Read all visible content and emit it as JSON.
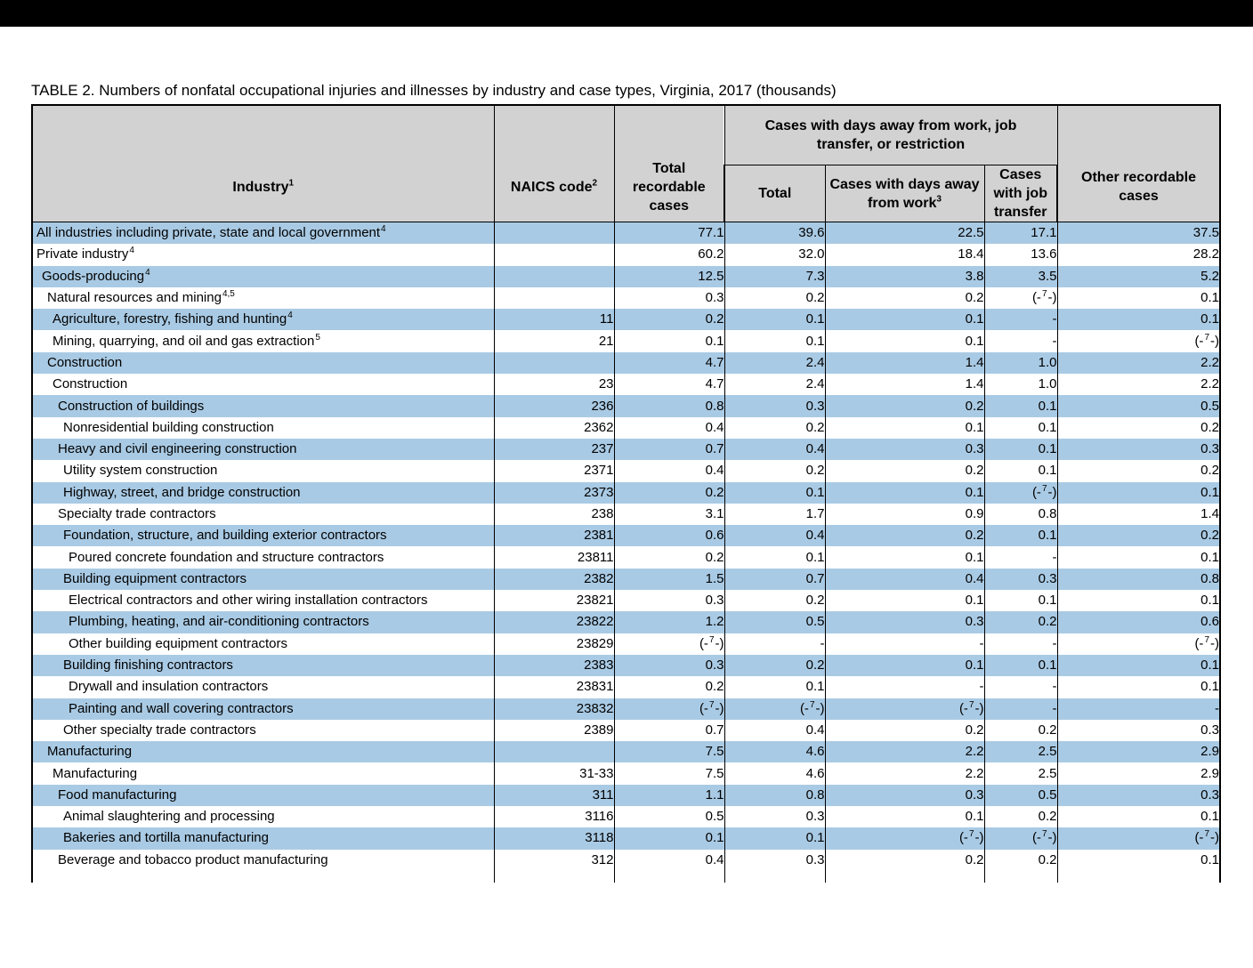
{
  "title": "TABLE 2. Numbers of nonfatal occupational injuries and illnesses by industry and case types, Virginia, 2017 (thousands)",
  "colors": {
    "band_blue": "#a9cae4",
    "header_gray": "#d2d2d2",
    "border_black": "#000000",
    "top_bar_black": "#000000"
  },
  "table": {
    "columns": {
      "industry": {
        "label": "Industry",
        "sup": "1"
      },
      "naics": {
        "label": "NAICS code",
        "sup": "2"
      },
      "total_recordable": {
        "label": "Total recordable cases"
      },
      "group": {
        "label": "Cases with days away from work, job transfer, or restriction"
      },
      "dart_total": {
        "label": "Total"
      },
      "days_away": {
        "label": "Cases with days away from work",
        "sup": "3"
      },
      "job_transfer": {
        "label": "Cases with job transfer"
      },
      "other_recordable": {
        "label": "Other recordable cases"
      }
    },
    "footnote_symbol": "(-7-)",
    "rows": [
      {
        "industry": "All industries including private, state and local government",
        "sup": "4",
        "indent": 0,
        "naics": "",
        "values": [
          "77.1",
          "39.6",
          "22.5",
          "17.1",
          "37.5"
        ]
      },
      {
        "industry": "Private industry",
        "sup": "4",
        "indent": 0,
        "naics": "",
        "values": [
          "60.2",
          "32.0",
          "18.4",
          "13.6",
          "28.2"
        ]
      },
      {
        "industry": "Goods-producing",
        "sup": "4",
        "indent": 1,
        "naics": "",
        "values": [
          "12.5",
          "7.3",
          "3.8",
          "3.5",
          "5.2"
        ]
      },
      {
        "industry": "Natural resources and mining",
        "sup": "4,5",
        "indent": 2,
        "naics": "",
        "values": [
          "0.3",
          "0.2",
          "0.2",
          "(-7-)",
          "0.1"
        ]
      },
      {
        "industry": "Agriculture, forestry, fishing and hunting",
        "sup": "4",
        "indent": 3,
        "naics": "11",
        "values": [
          "0.2",
          "0.1",
          "0.1",
          "-",
          "0.1"
        ]
      },
      {
        "industry": "Mining, quarrying, and oil and gas extraction",
        "sup": "5",
        "indent": 3,
        "naics": "21",
        "values": [
          "0.1",
          "0.1",
          "0.1",
          "-",
          "(-7-)"
        ]
      },
      {
        "industry": "Construction",
        "sup": "",
        "indent": 2,
        "naics": "",
        "values": [
          "4.7",
          "2.4",
          "1.4",
          "1.0",
          "2.2"
        ]
      },
      {
        "industry": "Construction",
        "sup": "",
        "indent": 3,
        "naics": "23",
        "values": [
          "4.7",
          "2.4",
          "1.4",
          "1.0",
          "2.2"
        ]
      },
      {
        "industry": "Construction of buildings",
        "sup": "",
        "indent": 4,
        "naics": "236",
        "values": [
          "0.8",
          "0.3",
          "0.2",
          "0.1",
          "0.5"
        ]
      },
      {
        "industry": "Nonresidential building construction",
        "sup": "",
        "indent": 5,
        "naics": "2362",
        "values": [
          "0.4",
          "0.2",
          "0.1",
          "0.1",
          "0.2"
        ]
      },
      {
        "industry": "Heavy and civil engineering construction",
        "sup": "",
        "indent": 4,
        "naics": "237",
        "values": [
          "0.7",
          "0.4",
          "0.3",
          "0.1",
          "0.3"
        ]
      },
      {
        "industry": "Utility system construction",
        "sup": "",
        "indent": 5,
        "naics": "2371",
        "values": [
          "0.4",
          "0.2",
          "0.2",
          "0.1",
          "0.2"
        ]
      },
      {
        "industry": "Highway, street, and bridge construction",
        "sup": "",
        "indent": 5,
        "naics": "2373",
        "values": [
          "0.2",
          "0.1",
          "0.1",
          "(-7-)",
          "0.1"
        ]
      },
      {
        "industry": "Specialty trade contractors",
        "sup": "",
        "indent": 4,
        "naics": "238",
        "values": [
          "3.1",
          "1.7",
          "0.9",
          "0.8",
          "1.4"
        ]
      },
      {
        "industry": "Foundation, structure, and building exterior contractors",
        "sup": "",
        "indent": 5,
        "naics": "2381",
        "values": [
          "0.6",
          "0.4",
          "0.2",
          "0.1",
          "0.2"
        ]
      },
      {
        "industry": "Poured concrete foundation and structure contractors",
        "sup": "",
        "indent": 6,
        "naics": "23811",
        "values": [
          "0.2",
          "0.1",
          "0.1",
          "-",
          "0.1"
        ]
      },
      {
        "industry": "Building equipment contractors",
        "sup": "",
        "indent": 5,
        "naics": "2382",
        "values": [
          "1.5",
          "0.7",
          "0.4",
          "0.3",
          "0.8"
        ]
      },
      {
        "industry": "Electrical contractors and other wiring installation contractors",
        "sup": "",
        "indent": 6,
        "naics": "23821",
        "values": [
          "0.3",
          "0.2",
          "0.1",
          "0.1",
          "0.1"
        ]
      },
      {
        "industry": "Plumbing, heating, and air-conditioning contractors",
        "sup": "",
        "indent": 6,
        "naics": "23822",
        "values": [
          "1.2",
          "0.5",
          "0.3",
          "0.2",
          "0.6"
        ]
      },
      {
        "industry": "Other building equipment contractors",
        "sup": "",
        "indent": 6,
        "naics": "23829",
        "values": [
          "(-7-)",
          "-",
          "-",
          "-",
          "(-7-)"
        ]
      },
      {
        "industry": "Building finishing contractors",
        "sup": "",
        "indent": 5,
        "naics": "2383",
        "values": [
          "0.3",
          "0.2",
          "0.1",
          "0.1",
          "0.1"
        ]
      },
      {
        "industry": "Drywall and insulation contractors",
        "sup": "",
        "indent": 6,
        "naics": "23831",
        "values": [
          "0.2",
          "0.1",
          "-",
          "-",
          "0.1"
        ]
      },
      {
        "industry": "Painting and wall covering contractors",
        "sup": "",
        "indent": 6,
        "naics": "23832",
        "values": [
          "(-7-)",
          "(-7-)",
          "(-7-)",
          "-",
          "-"
        ]
      },
      {
        "industry": "Other specialty trade contractors",
        "sup": "",
        "indent": 5,
        "naics": "2389",
        "values": [
          "0.7",
          "0.4",
          "0.2",
          "0.2",
          "0.3"
        ]
      },
      {
        "industry": "Manufacturing",
        "sup": "",
        "indent": 2,
        "naics": "",
        "values": [
          "7.5",
          "4.6",
          "2.2",
          "2.5",
          "2.9"
        ]
      },
      {
        "industry": "Manufacturing",
        "sup": "",
        "indent": 3,
        "naics": "31-33",
        "values": [
          "7.5",
          "4.6",
          "2.2",
          "2.5",
          "2.9"
        ]
      },
      {
        "industry": "Food manufacturing",
        "sup": "",
        "indent": 4,
        "naics": "311",
        "values": [
          "1.1",
          "0.8",
          "0.3",
          "0.5",
          "0.3"
        ]
      },
      {
        "industry": "Animal slaughtering and processing",
        "sup": "",
        "indent": 5,
        "naics": "3116",
        "values": [
          "0.5",
          "0.3",
          "0.1",
          "0.2",
          "0.1"
        ]
      },
      {
        "industry": "Bakeries and tortilla manufacturing",
        "sup": "",
        "indent": 5,
        "naics": "3118",
        "values": [
          "0.1",
          "0.1",
          "(-7-)",
          "(-7-)",
          "(-7-)"
        ]
      },
      {
        "industry": "Beverage and tobacco product manufacturing",
        "sup": "",
        "indent": 4,
        "naics": "312",
        "values": [
          "0.4",
          "0.3",
          "0.2",
          "0.2",
          "0.1"
        ]
      }
    ]
  }
}
